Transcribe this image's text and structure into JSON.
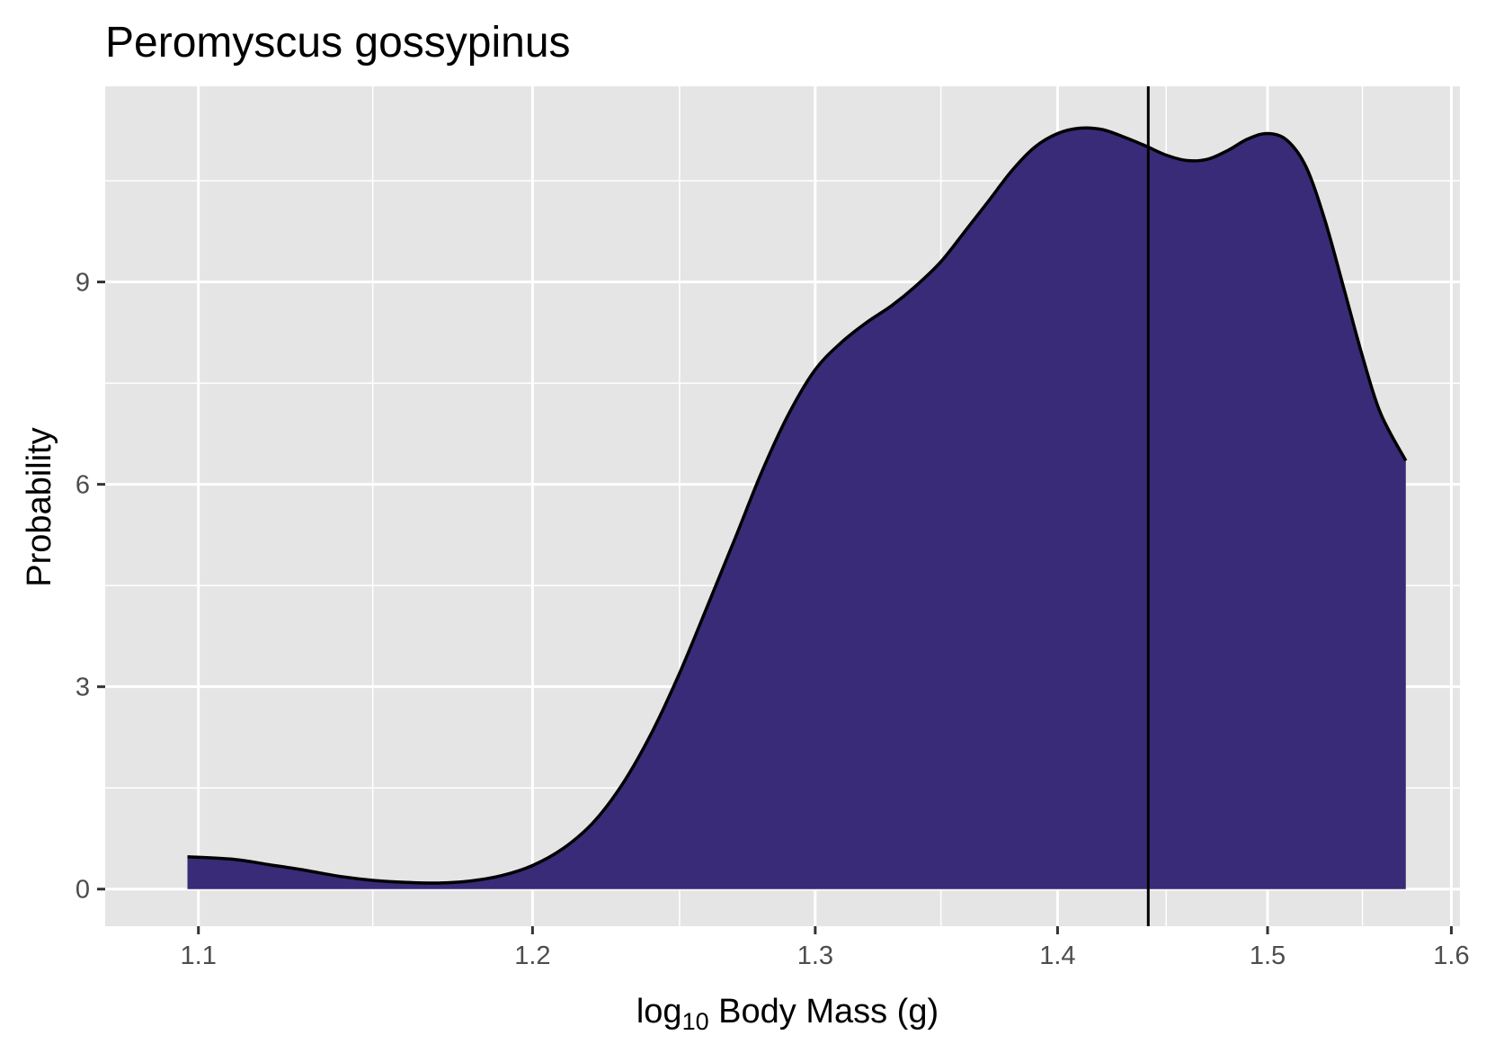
{
  "chart_data": {
    "type": "area",
    "title": "Peromyscus gossypinus",
    "xlabel": {
      "prefix": "log",
      "subscript": "10",
      "rest": " Body Mass (g)"
    },
    "ylabel": "Probability",
    "xlim": [
      1.075,
      1.605
    ],
    "ylim": [
      -0.55,
      11.9
    ],
    "x_ticks": [
      1.1,
      1.2,
      1.3,
      1.4,
      1.5,
      1.6
    ],
    "x_tick_labels": [
      "1.1",
      "1.2",
      "1.3",
      "1.4",
      "1.5",
      "1.6"
    ],
    "y_ticks": [
      0,
      3,
      6,
      9
    ],
    "y_tick_labels": [
      "0",
      "3",
      "6",
      "9"
    ],
    "x_scale": "reciprocal",
    "grid": true,
    "fill_color": "#3a2b78",
    "line_color": "#000000",
    "panel_background": "#e5e5e5",
    "vline_x": 1.4415,
    "x": [
      1.097,
      1.11,
      1.12,
      1.13,
      1.14,
      1.15,
      1.16,
      1.17,
      1.18,
      1.19,
      1.2,
      1.21,
      1.22,
      1.23,
      1.24,
      1.25,
      1.26,
      1.27,
      1.28,
      1.29,
      1.3,
      1.31,
      1.32,
      1.33,
      1.34,
      1.35,
      1.36,
      1.37,
      1.38,
      1.39,
      1.4,
      1.41,
      1.42,
      1.43,
      1.44,
      1.45,
      1.46,
      1.47,
      1.48,
      1.49,
      1.5,
      1.51,
      1.52,
      1.53,
      1.54,
      1.55,
      1.56,
      1.574
    ],
    "y": [
      0.48,
      0.44,
      0.36,
      0.28,
      0.19,
      0.13,
      0.1,
      0.09,
      0.12,
      0.2,
      0.35,
      0.6,
      0.98,
      1.55,
      2.3,
      3.2,
      4.2,
      5.2,
      6.2,
      7.05,
      7.7,
      8.1,
      8.4,
      8.65,
      8.95,
      9.3,
      9.75,
      10.2,
      10.65,
      11.0,
      11.2,
      11.28,
      11.26,
      11.15,
      11.02,
      10.88,
      10.8,
      10.82,
      10.95,
      11.12,
      11.2,
      11.1,
      10.7,
      9.9,
      8.9,
      7.9,
      7.05,
      6.35
    ]
  }
}
